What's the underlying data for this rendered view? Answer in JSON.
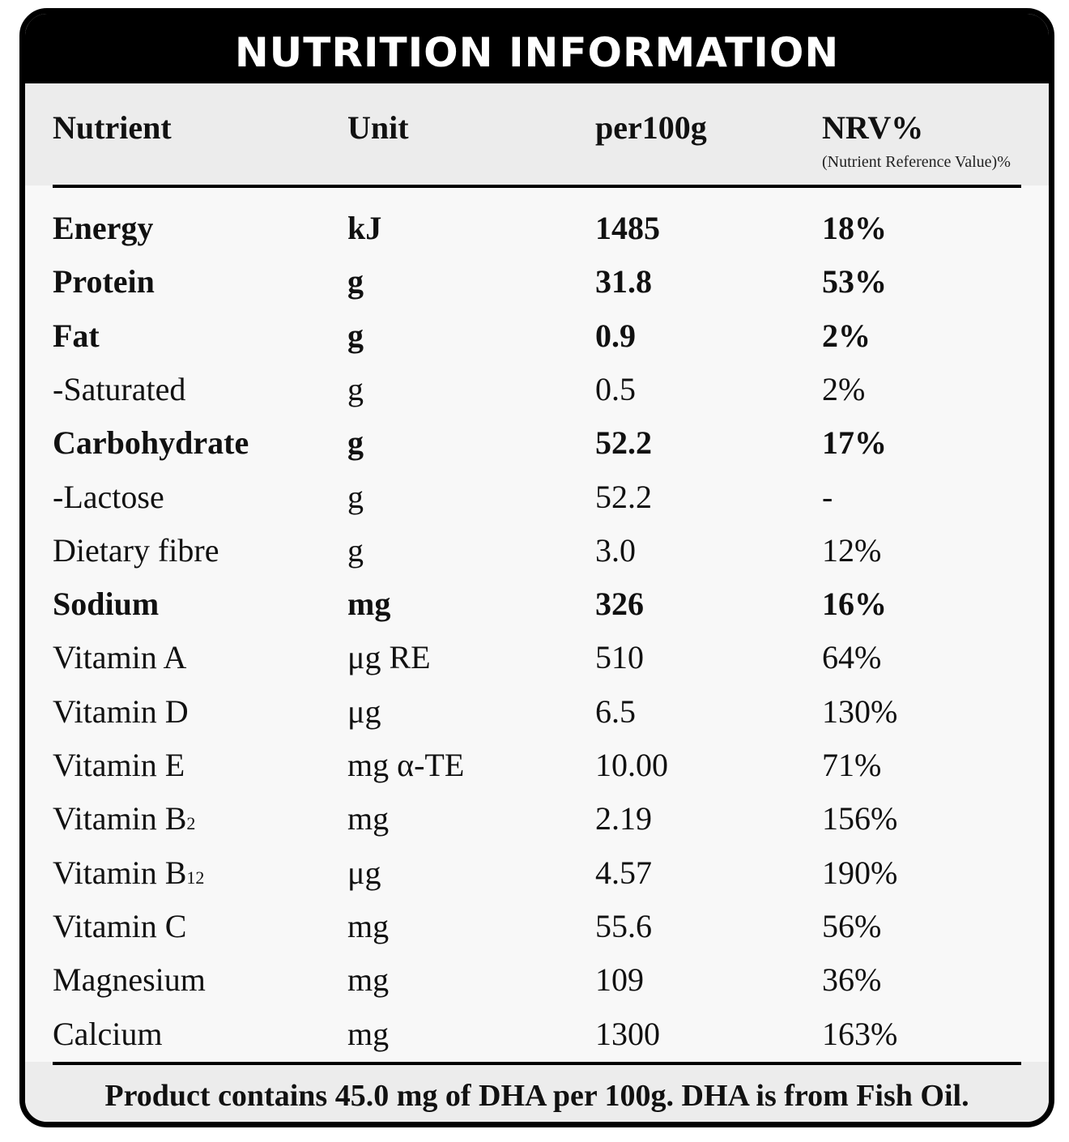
{
  "title": "NUTRITION INFORMATION",
  "headers": {
    "nutrient": "Nutrient",
    "unit": "Unit",
    "per100g": "per100g",
    "nrv": "NRV%",
    "nrv_note": "(Nutrient Reference Value)%"
  },
  "rows": [
    {
      "nutrient": "Energy",
      "sub": "",
      "unit": "kJ",
      "value": "1485",
      "nrv": "18%",
      "bold": true
    },
    {
      "nutrient": "Protein",
      "sub": "",
      "unit": "g",
      "value": "31.8",
      "nrv": "53%",
      "bold": true
    },
    {
      "nutrient": "Fat",
      "sub": "",
      "unit": "g",
      "value": "0.9",
      "nrv": "2%",
      "bold": true
    },
    {
      "nutrient": "-Saturated",
      "sub": "",
      "unit": "g",
      "value": "0.5",
      "nrv": "2%",
      "bold": false
    },
    {
      "nutrient": "Carbohydrate",
      "sub": "",
      "unit": "g",
      "value": "52.2",
      "nrv": "17%",
      "bold": true
    },
    {
      "nutrient": "-Lactose",
      "sub": "",
      "unit": "g",
      "value": "52.2",
      "nrv": "-",
      "bold": false
    },
    {
      "nutrient": "Dietary fibre",
      "sub": "",
      "unit": "g",
      "value": "3.0",
      "nrv": "12%",
      "bold": false
    },
    {
      "nutrient": "Sodium",
      "sub": "",
      "unit": "mg",
      "value": "326",
      "nrv": "16%",
      "bold": true
    },
    {
      "nutrient": "Vitamin A",
      "sub": "",
      "unit": "μg  RE",
      "value": "510",
      "nrv": "64%",
      "bold": false
    },
    {
      "nutrient": "Vitamin D",
      "sub": "",
      "unit": "μg",
      "value": "6.5",
      "nrv": "130%",
      "bold": false
    },
    {
      "nutrient": "Vitamin E",
      "sub": "",
      "unit": "mg α-TE",
      "value": "10.00",
      "nrv": "71%",
      "bold": false
    },
    {
      "nutrient": "Vitamin B",
      "sub": "2",
      "unit": "mg",
      "value": "2.19",
      "nrv": "156%",
      "bold": false
    },
    {
      "nutrient": "Vitamin B",
      "sub": "12",
      "unit": "μg",
      "value": "4.57",
      "nrv": "190%",
      "bold": false
    },
    {
      "nutrient": "Vitamin C",
      "sub": "",
      "unit": "mg",
      "value": "55.6",
      "nrv": "56%",
      "bold": false
    },
    {
      "nutrient": "Magnesium",
      "sub": "",
      "unit": "mg",
      "value": "109",
      "nrv": "36%",
      "bold": false
    },
    {
      "nutrient": "Calcium",
      "sub": "",
      "unit": "mg",
      "value": "1300",
      "nrv": "163%",
      "bold": false
    }
  ],
  "footer": "Product contains 45.0 mg of DHA per 100g. DHA is from Fish Oil."
}
